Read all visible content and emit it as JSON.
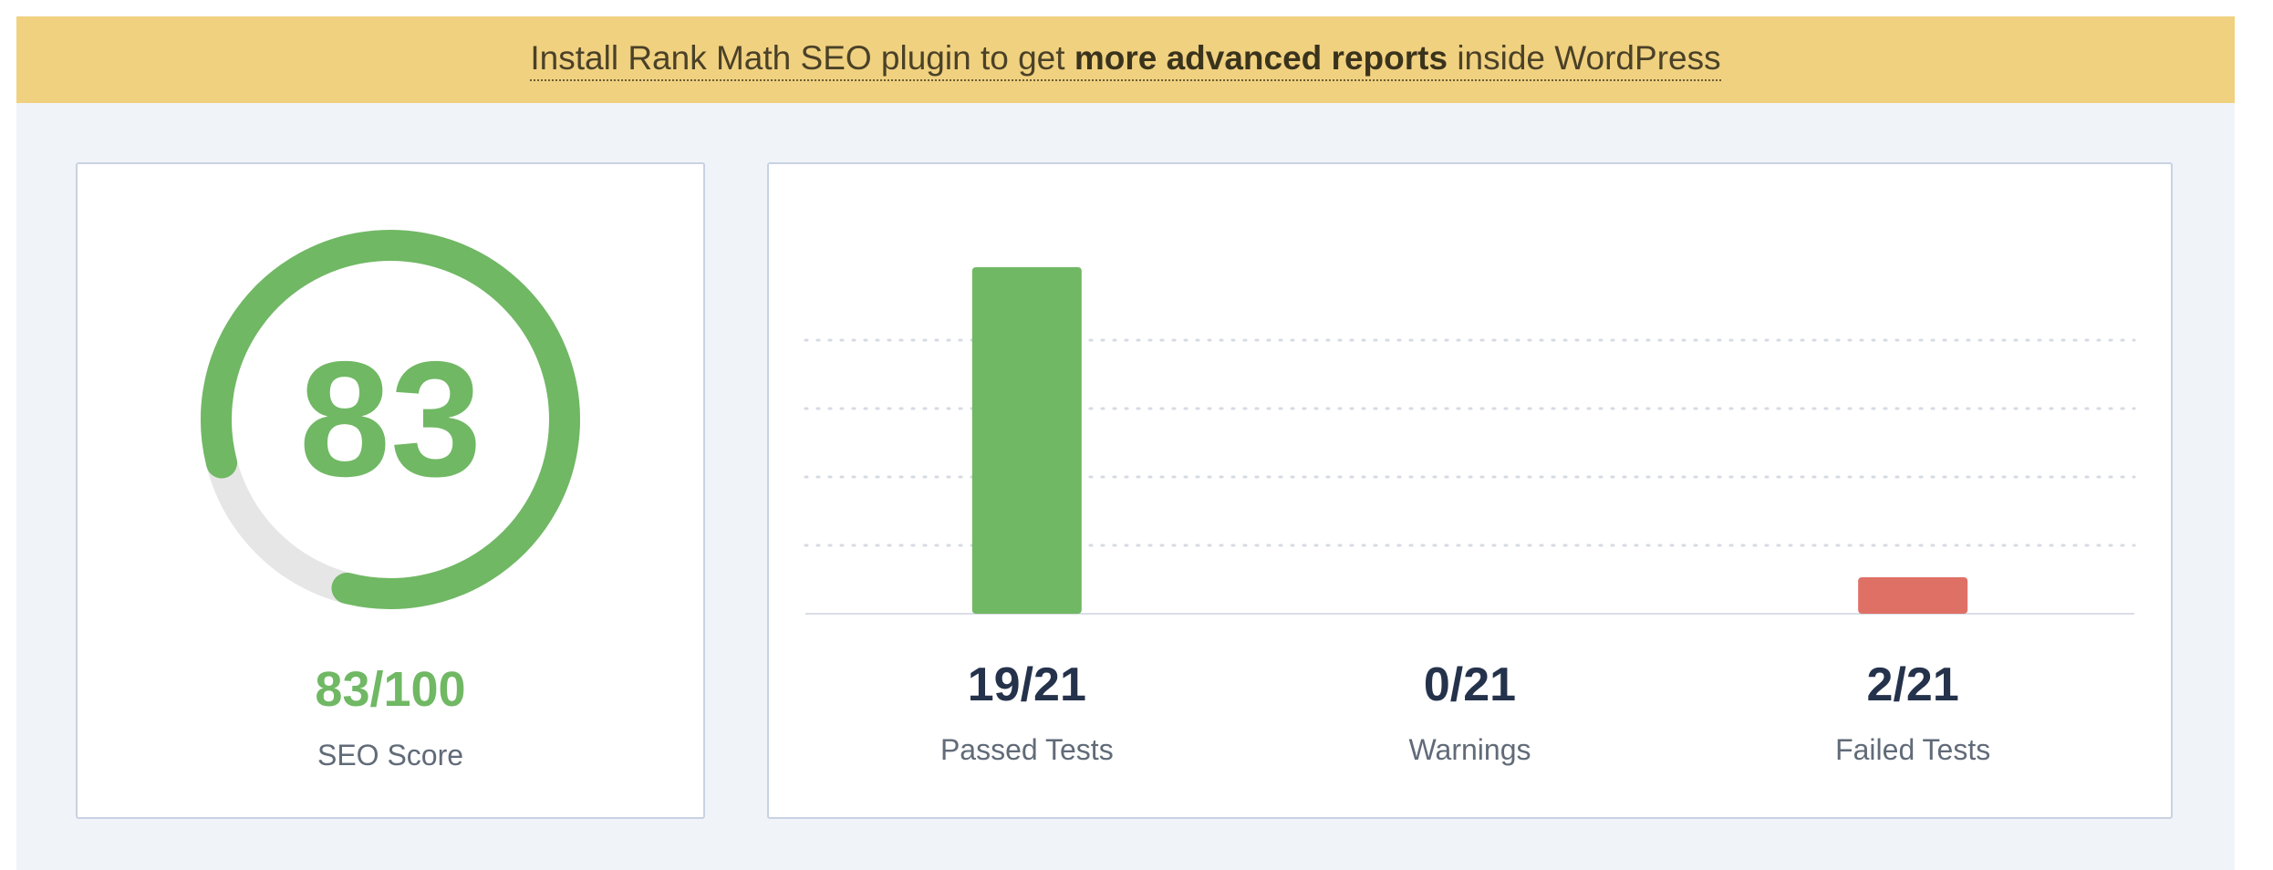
{
  "banner": {
    "text_before": "Install Rank Math SEO plugin to get ",
    "text_bold": "more advanced reports",
    "text_after": " inside WordPress"
  },
  "score": {
    "gauge_value": "83",
    "value_text": "83/100",
    "label": "SEO Score",
    "fraction": 0.83
  },
  "colors": {
    "accent_green": "#70b864",
    "failed_red": "#df7066",
    "track_gray": "#e6e6e6",
    "banner_yellow": "#f0d180",
    "page_bg": "#f0f4f9"
  },
  "stats": [
    {
      "value": "19/21",
      "label": "Passed Tests"
    },
    {
      "value": "0/21",
      "label": "Warnings"
    },
    {
      "value": "2/21",
      "label": "Failed Tests"
    }
  ],
  "chart_data": {
    "type": "bar",
    "categories": [
      "Passed Tests",
      "Warnings",
      "Failed Tests"
    ],
    "values": [
      19,
      0,
      2
    ],
    "colors": [
      "#70b864",
      "#f0b849",
      "#df7066"
    ],
    "ylim": [
      0,
      21
    ],
    "grid": true
  }
}
